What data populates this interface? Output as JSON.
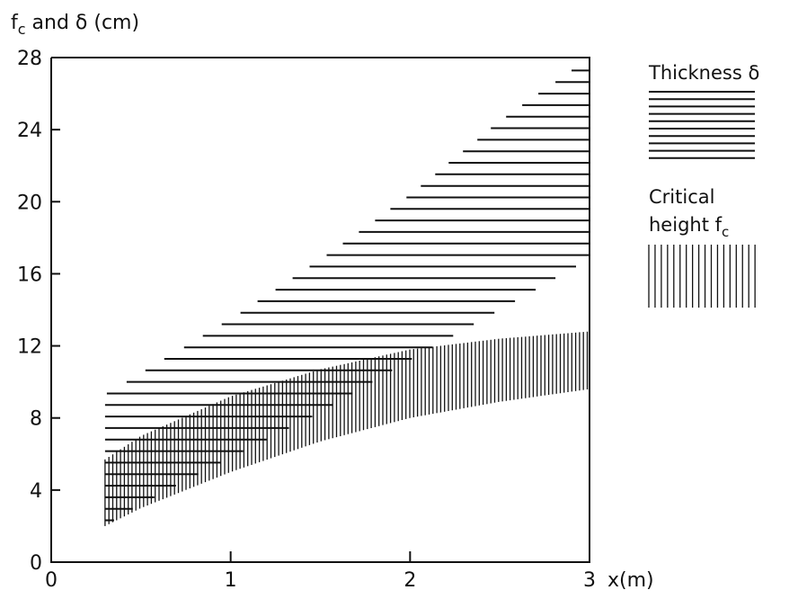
{
  "chart_data": {
    "type": "area",
    "ylabel": "f c and δ (cm)",
    "ylabel_main": "f",
    "ylabel_sub": "c",
    "ylabel_rest": " and δ (cm)",
    "xlabel": "x(m)",
    "xlim": [
      0,
      3
    ],
    "ylim": [
      0,
      28
    ],
    "x_ticks": [
      0,
      1,
      2,
      3
    ],
    "y_ticks": [
      0,
      4,
      8,
      12,
      16,
      20,
      24,
      28
    ],
    "grid": false,
    "legend_position": "right",
    "series": [
      {
        "name": "Thickness δ",
        "legend_label": "Thickness δ",
        "pattern": "horizontal-hatch",
        "x": [
          0.3,
          0.5,
          1.0,
          1.5,
          2.0,
          2.5,
          3.0
        ],
        "lower": [
          2.0,
          3.2,
          5.8,
          8.3,
          11.2,
          14.0,
          16.8
        ],
        "upper": [
          9.3,
          10.5,
          13.5,
          16.8,
          20.4,
          24.5,
          28.0
        ]
      },
      {
        "name": "Critical height fc",
        "legend_label_line1": "Critical",
        "legend_label_line2": "height f",
        "legend_label_sub": "c",
        "pattern": "vertical-hatch",
        "x": [
          0.3,
          0.5,
          1.0,
          1.5,
          2.0,
          2.5,
          3.0
        ],
        "lower": [
          2.0,
          3.0,
          5.0,
          6.7,
          8.0,
          8.9,
          9.6
        ],
        "upper": [
          5.7,
          7.0,
          9.2,
          10.7,
          11.8,
          12.4,
          12.8
        ]
      }
    ]
  }
}
